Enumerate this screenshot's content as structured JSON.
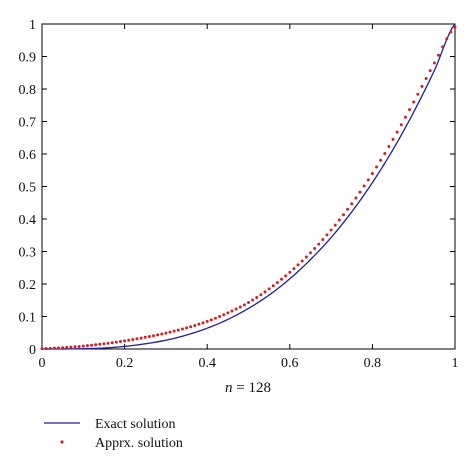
{
  "chart_data": {
    "type": "line",
    "xlabel_var": "n",
    "xlabel_rest": " = 128",
    "xlim": [
      0,
      1
    ],
    "ylim": [
      0,
      1
    ],
    "xticks": [
      "0",
      "0.2",
      "0.4",
      "0.6",
      "0.8",
      "1"
    ],
    "yticks": [
      "0",
      "0.1",
      "0.2",
      "0.3",
      "0.4",
      "0.5",
      "0.6",
      "0.7",
      "0.8",
      "0.9",
      "1"
    ],
    "grid": false,
    "legend_position": "bottom-left, below plot",
    "series": [
      {
        "name": "Exact solution",
        "style": "solid line",
        "color": "#1f1f9a",
        "x": [
          0,
          0.05,
          0.1,
          0.15,
          0.2,
          0.25,
          0.3,
          0.35,
          0.4,
          0.45,
          0.5,
          0.55,
          0.6,
          0.65,
          0.7,
          0.75,
          0.8,
          0.85,
          0.9,
          0.95,
          1
        ],
        "y": [
          0,
          0.0001,
          0.001,
          0.003,
          0.008,
          0.016,
          0.027,
          0.043,
          0.064,
          0.091,
          0.125,
          0.166,
          0.216,
          0.275,
          0.343,
          0.422,
          0.512,
          0.614,
          0.729,
          0.857,
          1
        ]
      },
      {
        "name": "Apprx. solution",
        "style": "dotted",
        "color": "#d42020",
        "x": [
          0,
          0.05,
          0.1,
          0.15,
          0.2,
          0.25,
          0.3,
          0.35,
          0.4,
          0.45,
          0.5,
          0.55,
          0.6,
          0.65,
          0.7,
          0.75,
          0.8,
          0.85,
          0.9,
          0.95,
          1
        ],
        "y": [
          0.001,
          0.004,
          0.009,
          0.016,
          0.025,
          0.036,
          0.049,
          0.065,
          0.085,
          0.111,
          0.143,
          0.185,
          0.236,
          0.296,
          0.366,
          0.447,
          0.54,
          0.645,
          0.76,
          0.88,
          0.99
        ]
      }
    ]
  }
}
